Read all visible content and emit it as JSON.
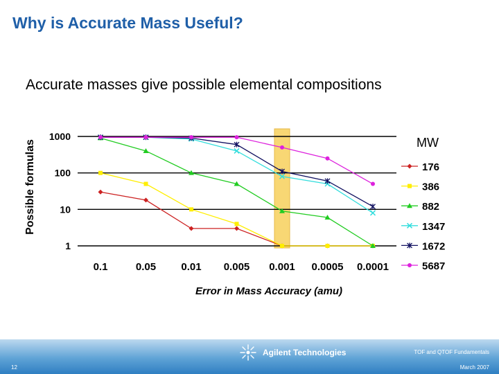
{
  "slide": {
    "title": "Why is Accurate Mass Useful?",
    "subtitle": "Accurate masses give possible elemental compositions"
  },
  "chart_data": {
    "type": "line",
    "ylabel": "Possible formulas",
    "xlabel": "Error in Mass Accuracy (amu)",
    "legend_title": "MW",
    "legend_position": "right",
    "y_scale": "log",
    "ylim": [
      1,
      1000
    ],
    "y_ticks": [
      "1000",
      "100",
      "10",
      "1"
    ],
    "categories": [
      "0.1",
      "0.05",
      "0.01",
      "0.005",
      "0.001",
      "0.0005",
      "0.0001"
    ],
    "highlight_category": "0.001",
    "series": [
      {
        "name": "176",
        "color": "#cc2222",
        "marker": "diamond",
        "values": [
          30,
          18,
          3,
          3,
          1,
          1,
          1
        ]
      },
      {
        "name": "386",
        "color": "#ffee00",
        "marker": "square",
        "values": [
          100,
          50,
          10,
          4,
          1,
          1,
          1
        ]
      },
      {
        "name": "882",
        "color": "#22cc22",
        "marker": "triangle",
        "values": [
          900,
          400,
          100,
          50,
          9,
          6,
          1
        ]
      },
      {
        "name": "1347",
        "color": "#33dddd",
        "marker": "x",
        "values": [
          950,
          950,
          850,
          400,
          80,
          50,
          8
        ]
      },
      {
        "name": "1672",
        "color": "#101060",
        "marker": "star",
        "values": [
          950,
          950,
          900,
          600,
          110,
          60,
          12
        ]
      },
      {
        "name": "5687",
        "color": "#dd22dd",
        "marker": "circle",
        "values": [
          950,
          950,
          950,
          950,
          500,
          250,
          50
        ]
      }
    ]
  },
  "footer": {
    "course": "TOF and QTOF Fundamentals",
    "page": "12",
    "date": "March 2007",
    "logo_text": "Agilent Technologies",
    "logo_icon": "spark-icon"
  }
}
